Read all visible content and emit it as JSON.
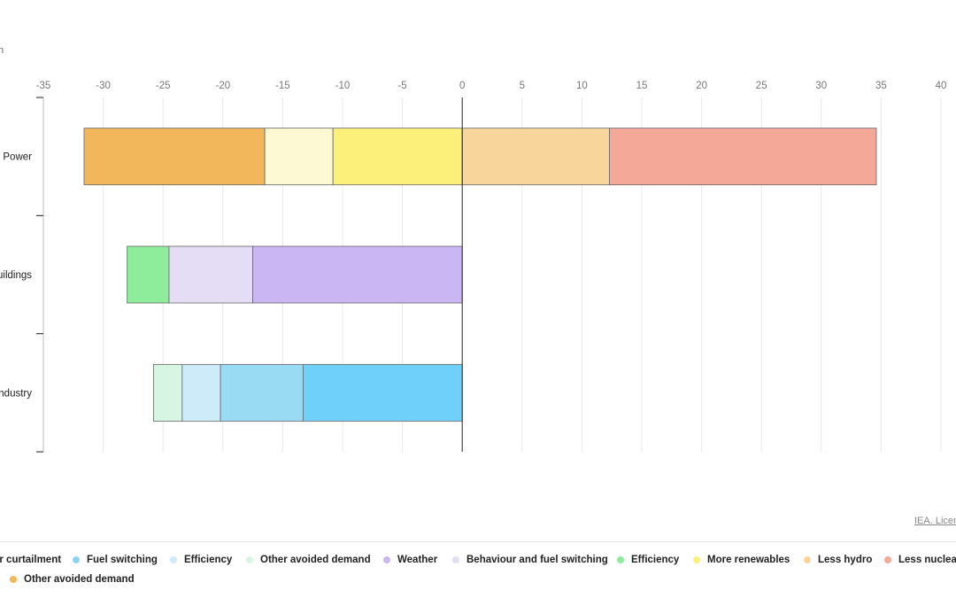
{
  "unit_label": "n",
  "source": "IEA. Licen",
  "colors": {
    "axis": "#222222",
    "grid": "#e8e8e8",
    "tick_text": "#777777",
    "bar_stroke": "#666666"
  },
  "legend": [
    {
      "label": "Lower curtailment",
      "color": "#7fd0f5"
    },
    {
      "label": "Fuel switching",
      "color": "#8fd3f2"
    },
    {
      "label": "Efficiency",
      "color": "#cdebf8"
    },
    {
      "label": "Other avoided demand",
      "color": "#d6f5e3"
    },
    {
      "label": "Weather",
      "color": "#c9b6f2"
    },
    {
      "label": "Behaviour and fuel switching",
      "color": "#e4ddf5"
    },
    {
      "label": "Efficiency",
      "color": "#8ded9b"
    },
    {
      "label": "More renewables",
      "color": "#fcf07a"
    },
    {
      "label": "Less hydro",
      "color": "#f7d59b"
    },
    {
      "label": "Less nuclear",
      "color": "#f3a898"
    },
    {
      "label": "Other avoided demand",
      "color": "#f2b75a"
    }
  ],
  "chart_data": {
    "type": "bar",
    "orientation": "horizontal",
    "stacked": true,
    "categories": [
      "Power",
      "uildings",
      "ndustry"
    ],
    "xlim": [
      -35,
      40
    ],
    "xticks": [
      -35,
      -30,
      -25,
      -20,
      -15,
      -10,
      -5,
      0,
      5,
      10,
      15,
      20,
      25,
      30,
      35,
      40
    ],
    "grid": true,
    "legend_position": "bottom",
    "series": [
      {
        "category": "Power",
        "label": "Other avoided demand",
        "start": -31.6,
        "end": -16.5,
        "color": "#f2b75a"
      },
      {
        "category": "Power",
        "label": "More renewables",
        "start": -16.5,
        "end": -10.8,
        "color": "#fdf9d2"
      },
      {
        "category": "Power",
        "label": "More renewables",
        "start": -10.8,
        "end": 0,
        "color": "#fcf07a"
      },
      {
        "category": "Power",
        "label": "Less hydro",
        "start": 0,
        "end": 12.3,
        "color": "#f7d59b"
      },
      {
        "category": "Power",
        "label": "Less nuclear",
        "start": 12.3,
        "end": 34.6,
        "color": "#f3a898"
      },
      {
        "category": "uildings",
        "label": "Efficiency",
        "start": -28.0,
        "end": -24.5,
        "color": "#8ded9b"
      },
      {
        "category": "uildings",
        "label": "Behaviour and fuel switching",
        "start": -24.5,
        "end": -17.5,
        "color": "#e4ddf5"
      },
      {
        "category": "uildings",
        "label": "Weather",
        "start": -17.5,
        "end": 0,
        "color": "#c9b6f2"
      },
      {
        "category": "ndustry",
        "label": "Other avoided demand",
        "start": -25.8,
        "end": -23.4,
        "color": "#d6f5e3"
      },
      {
        "category": "ndustry",
        "label": "Efficiency",
        "start": -23.4,
        "end": -20.2,
        "color": "#cdebf8"
      },
      {
        "category": "ndustry",
        "label": "Fuel switching",
        "start": -20.2,
        "end": -13.3,
        "color": "#98dbf3"
      },
      {
        "category": "ndustry",
        "label": "Lower curtailment",
        "start": -13.3,
        "end": 0,
        "color": "#6fd0fa"
      }
    ]
  }
}
